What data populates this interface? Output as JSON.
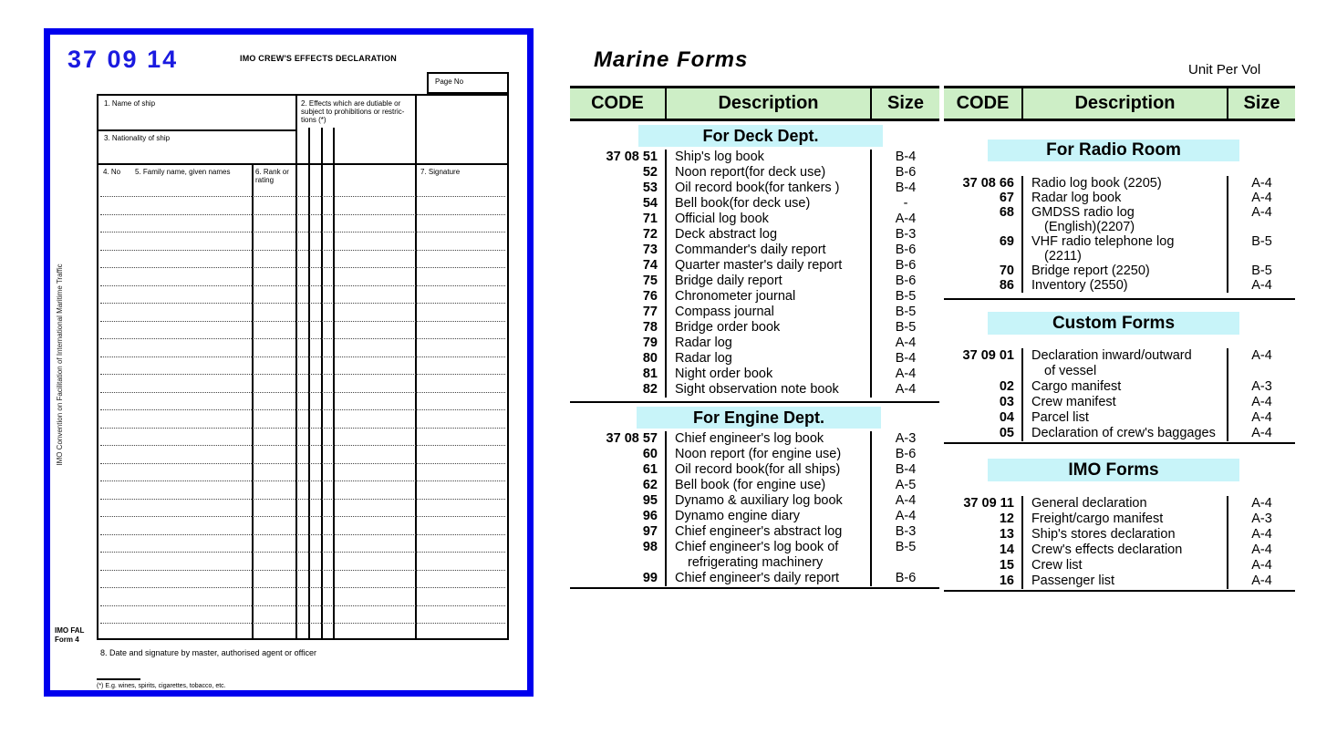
{
  "form": {
    "code": "37 09 14",
    "title": "IMO CREW'S EFFECTS DECLARATION",
    "page_no_label": "Page No",
    "side_note": "IMO Convention on Facilitation of International Maritime Traffic",
    "fields": {
      "name_of_ship": "1. Name of ship",
      "effects_dutiable": "2. Effects which are dutiable or subject to prohibitions or restric- tions (*)",
      "nationality_of_ship": "3. Nationality of ship",
      "no": "4. No",
      "family_name": "5. Family name, given names",
      "rank_or_rating": "6. Rank or rating",
      "signature": "7. Signature",
      "date_signature": "8. Date and signature by master, authorised agent or officer"
    },
    "form_id_line1": "IMO FAL",
    "form_id_line2": "Form 4",
    "footnote": "(*) E.g. wines, spirits, cigarettes, tobacco, etc."
  },
  "catalog": {
    "title": "Marine Forms",
    "unit_label": "Unit Per Vol",
    "headers": {
      "code": "CODE",
      "description": "Description",
      "size": "Size"
    },
    "sections": {
      "deck": {
        "title": "For Deck Dept.",
        "rows": [
          {
            "code": "37 08 51",
            "desc": "Ship's log book",
            "size": "B-4"
          },
          {
            "code": "52",
            "desc": "Noon report(for deck use)",
            "size": "B-6"
          },
          {
            "code": "53",
            "desc": "Oil record book(for tankers )",
            "size": "B-4"
          },
          {
            "code": "54",
            "desc": "Bell book(for deck use)",
            "size": "-"
          },
          {
            "code": "71",
            "desc": "Official log book",
            "size": "A-4"
          },
          {
            "code": "72",
            "desc": "Deck abstract log",
            "size": "B-3"
          },
          {
            "code": "73",
            "desc": "Commander's daily report",
            "size": "B-6"
          },
          {
            "code": "74",
            "desc": "Quarter master's daily report",
            "size": "B-6"
          },
          {
            "code": "75",
            "desc": "Bridge daily report",
            "size": "B-6"
          },
          {
            "code": "76",
            "desc": "Chronometer journal",
            "size": "B-5"
          },
          {
            "code": "77",
            "desc": "Compass journal",
            "size": "B-5"
          },
          {
            "code": "78",
            "desc": "Bridge order book",
            "size": "B-5"
          },
          {
            "code": "79",
            "desc": "Radar log",
            "size": "A-4"
          },
          {
            "code": "80",
            "desc": "Radar log",
            "size": "B-4"
          },
          {
            "code": "81",
            "desc": "Night order book",
            "size": "A-4"
          },
          {
            "code": "82",
            "desc": "Sight observation note book",
            "size": "A-4"
          }
        ]
      },
      "engine": {
        "title": "For Engine Dept.",
        "rows": [
          {
            "code": "37 08 57",
            "desc": "Chief engineer's log book",
            "size": "A-3"
          },
          {
            "code": "60",
            "desc": "Noon report (for engine use)",
            "size": "B-6"
          },
          {
            "code": "61",
            "desc": "Oil record book(for all ships)",
            "size": "B-4"
          },
          {
            "code": "62",
            "desc": "Bell book (for engine use)",
            "size": "A-5"
          },
          {
            "code": "95",
            "desc": "Dynamo & auxiliary log book",
            "size": "A-4"
          },
          {
            "code": "96",
            "desc": "Dynamo engine diary",
            "size": "A-4"
          },
          {
            "code": "97",
            "desc": "Chief engineer's abstract log",
            "size": "B-3"
          },
          {
            "code": "98",
            "desc": "Chief engineer's log book of",
            "desc2": "refrigerating machinery",
            "size": "B-5"
          },
          {
            "code": "99",
            "desc": "Chief engineer's daily report",
            "size": "B-6"
          }
        ]
      },
      "radio": {
        "title": "For Radio Room",
        "rows": [
          {
            "code": "37 08 66",
            "desc": "Radio log book (2205)",
            "size": "A-4"
          },
          {
            "code": "67",
            "desc": "Radar log book",
            "size": "A-4"
          },
          {
            "code": "68",
            "desc": "GMDSS radio log",
            "desc2": "(English)(2207)",
            "size": "A-4"
          },
          {
            "code": "69",
            "desc": "VHF radio telephone log",
            "desc2": "(2211)",
            "size": "B-5"
          },
          {
            "code": "70",
            "desc": "Bridge report (2250)",
            "size": "B-5"
          },
          {
            "code": "86",
            "desc": "Inventory (2550)",
            "size": "A-4"
          }
        ]
      },
      "custom": {
        "title": "Custom Forms",
        "rows": [
          {
            "code": "37 09 01",
            "desc": "Declaration inward/outward",
            "desc2": "of vessel",
            "size": "A-4"
          },
          {
            "code": "02",
            "desc": "Cargo manifest",
            "size": "A-3"
          },
          {
            "code": "03",
            "desc": "Crew manifest",
            "size": "A-4"
          },
          {
            "code": "04",
            "desc": "Parcel list",
            "size": "A-4"
          },
          {
            "code": "05",
            "desc": "Declaration of crew's baggages",
            "size": "A-4"
          }
        ]
      },
      "imo": {
        "title": "IMO Forms",
        "rows": [
          {
            "code": "37 09 11",
            "desc": "General declaration",
            "size": "A-4"
          },
          {
            "code": "12",
            "desc": "Freight/cargo manifest",
            "size": "A-3"
          },
          {
            "code": "13",
            "desc": "Ship's stores declaration",
            "size": "A-4"
          },
          {
            "code": "14",
            "desc": "Crew's effects declaration",
            "size": "A-4"
          },
          {
            "code": "15",
            "desc": "Crew list",
            "size": "A-4"
          },
          {
            "code": "16",
            "desc": "Passenger list",
            "size": "A-4"
          }
        ]
      }
    }
  },
  "colors": {
    "header_green": "#cdeec6",
    "section_cyan": "#c8f4f9",
    "frame_blue": "#0000ee",
    "code_blue": "#1a1ae0"
  }
}
